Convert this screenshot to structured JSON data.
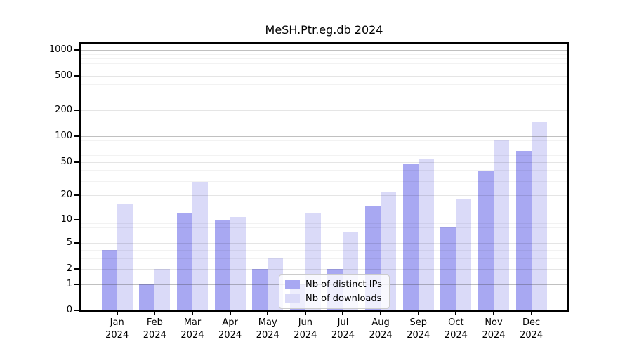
{
  "title": "MeSH.Ptr.eg.db 2024",
  "legend": {
    "items": [
      {
        "label": "Nb of distinct IPs",
        "color": "#a8a8f2"
      },
      {
        "label": "Nb of downloads",
        "color": "#dadaf8"
      }
    ]
  },
  "chart_data": {
    "type": "bar",
    "title": "MeSH.Ptr.eg.db 2024",
    "categories": [
      "Jan 2024",
      "Feb 2024",
      "Mar 2024",
      "Apr 2024",
      "May 2024",
      "Jun 2024",
      "Jul 2024",
      "Aug 2024",
      "Sep 2024",
      "Oct 2024",
      "Nov 2024",
      "Dec 2024"
    ],
    "series": [
      {
        "name": "Nb of distinct IPs",
        "color": "#a8a8f2",
        "values": [
          4,
          1,
          12,
          10,
          2,
          1,
          2,
          15,
          47,
          8,
          39,
          67
        ]
      },
      {
        "name": "Nb of downloads",
        "color": "#dadaf8",
        "values": [
          16,
          2,
          29,
          11,
          3,
          12,
          7,
          22,
          54,
          18,
          90,
          146
        ]
      }
    ],
    "xlabel": "",
    "ylabel": "",
    "y_scale": "log10(1+value)",
    "ylim": [
      0,
      1000
    ],
    "y_tick_values": [
      0,
      1,
      2,
      5,
      10,
      20,
      50,
      100,
      200,
      500,
      1000
    ],
    "y_major_gridlines": [
      1,
      10,
      100,
      1000
    ],
    "y_minor_gridlines": [
      3,
      4,
      6,
      7,
      8,
      9,
      30,
      40,
      60,
      70,
      80,
      90,
      300,
      400,
      600,
      700,
      800,
      900
    ],
    "grid": true,
    "legend_position": "inside-bottom-center"
  }
}
